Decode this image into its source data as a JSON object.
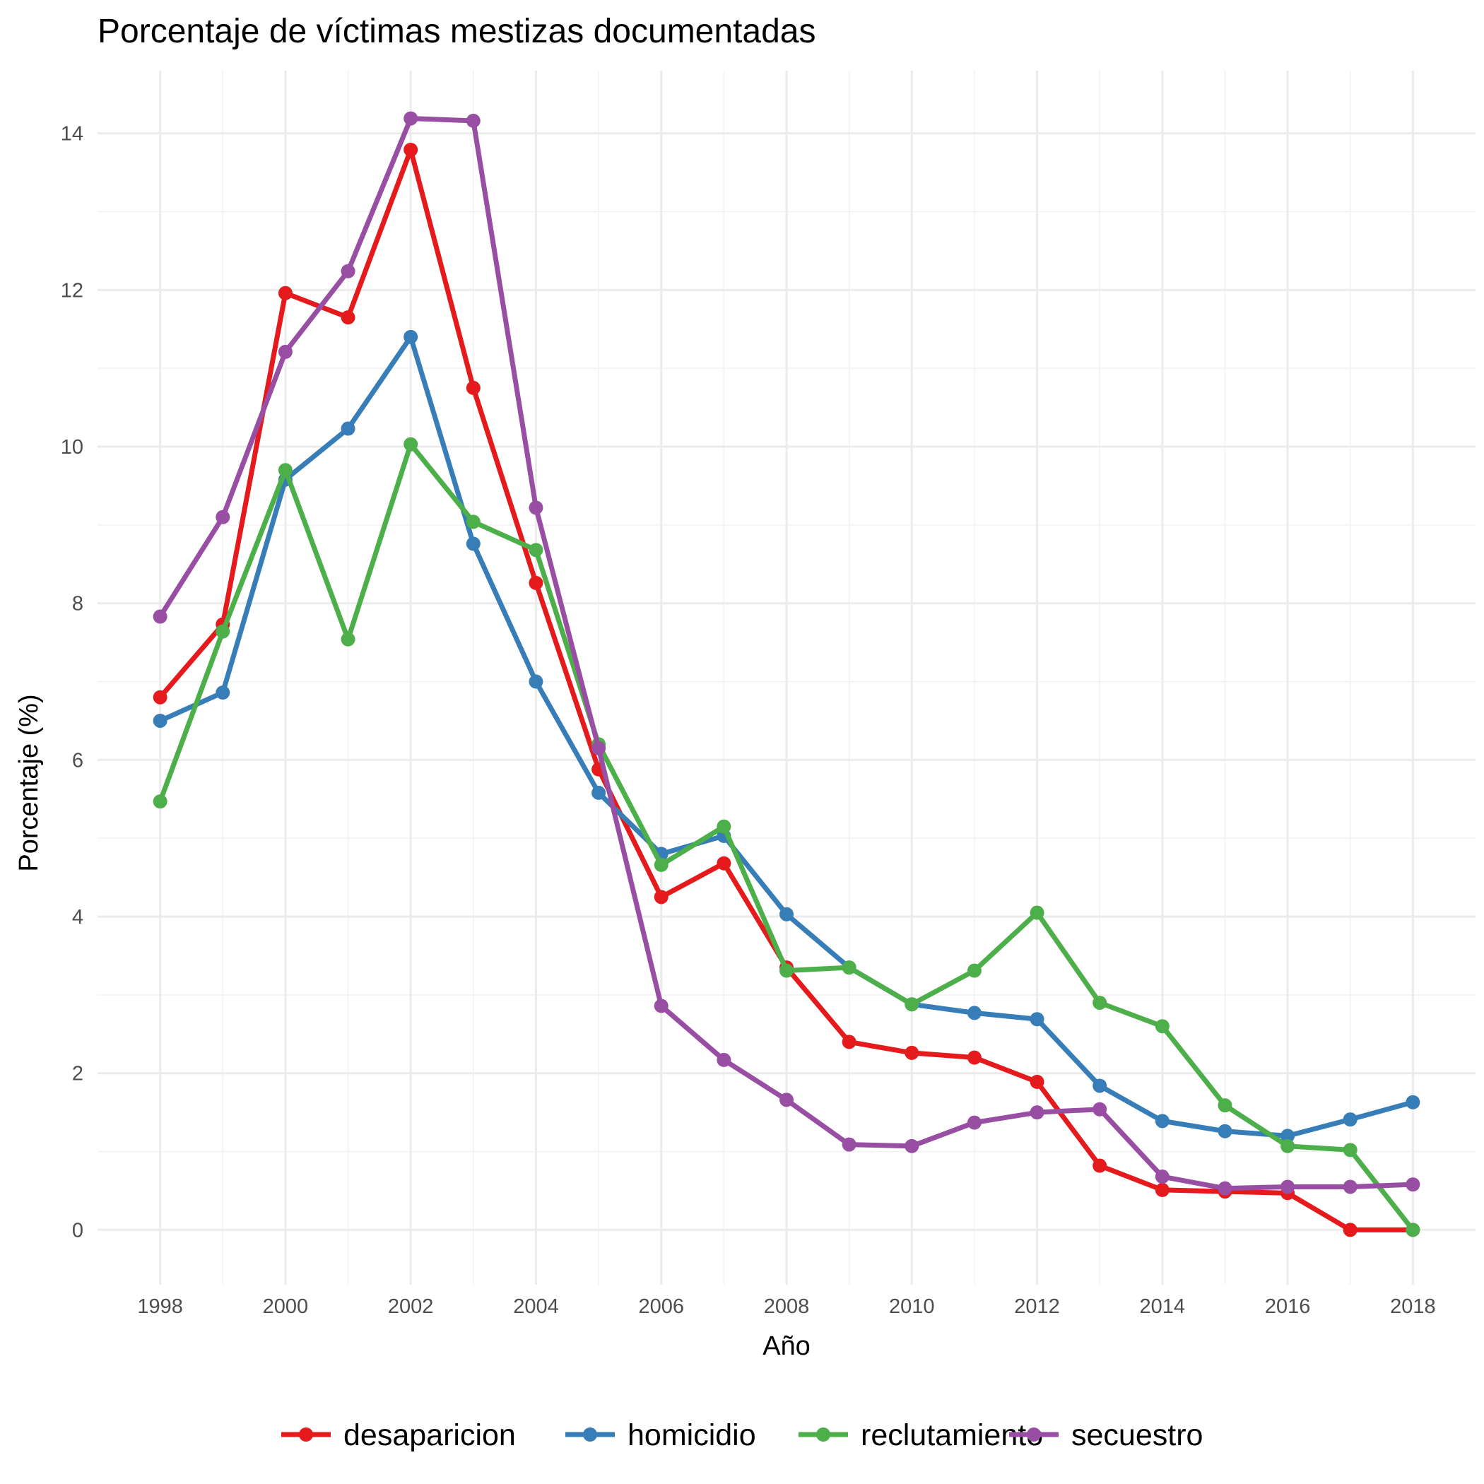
{
  "chart_data": {
    "type": "line",
    "title": "Porcentaje de víctimas mestizas documentadas",
    "xlabel": "Año",
    "ylabel": "Porcentaje (%)",
    "x": [
      1998,
      1999,
      2000,
      2001,
      2002,
      2003,
      2004,
      2005,
      2006,
      2007,
      2008,
      2009,
      2010,
      2011,
      2012,
      2013,
      2014,
      2015,
      2016,
      2017,
      2018
    ],
    "xlim": [
      1997,
      2019
    ],
    "ylim": [
      -0.7,
      14.8
    ],
    "x_ticks": [
      "1998",
      "2000",
      "2002",
      "2004",
      "2006",
      "2008",
      "2010",
      "2012",
      "2014",
      "2016",
      "2018"
    ],
    "y_ticks": [
      "0",
      "2",
      "4",
      "6",
      "8",
      "10",
      "12",
      "14"
    ],
    "grid": true,
    "legend_position": "bottom",
    "series": [
      {
        "name": "desaparicion",
        "color": "#E41A1C",
        "values": [
          6.8,
          7.73,
          11.96,
          11.65,
          13.79,
          10.75,
          8.26,
          5.88,
          4.25,
          4.68,
          3.35,
          2.4,
          2.26,
          2.2,
          1.89,
          0.82,
          0.51,
          0.49,
          0.47,
          0.0,
          0.0
        ]
      },
      {
        "name": "homicidio",
        "color": "#377EB8",
        "values": [
          6.5,
          6.86,
          9.58,
          10.23,
          11.4,
          8.76,
          7.0,
          5.58,
          4.8,
          5.03,
          4.03,
          3.35,
          2.88,
          2.77,
          2.69,
          1.84,
          1.39,
          1.26,
          1.2,
          1.41,
          1.63
        ]
      },
      {
        "name": "reclutamiento",
        "color": "#4DAF4A",
        "values": [
          5.47,
          7.64,
          9.7,
          7.54,
          10.03,
          9.04,
          8.68,
          6.2,
          4.66,
          5.15,
          3.31,
          3.35,
          2.88,
          3.31,
          4.05,
          2.9,
          2.6,
          1.59,
          1.07,
          1.02,
          0.0
        ]
      },
      {
        "name": "secuestro",
        "color": "#984EA3",
        "values": [
          7.83,
          9.1,
          11.21,
          12.24,
          14.19,
          14.16,
          9.22,
          6.15,
          2.86,
          2.17,
          1.66,
          1.09,
          1.07,
          1.37,
          1.5,
          1.54,
          0.68,
          0.53,
          0.55,
          0.55,
          0.58
        ]
      }
    ]
  }
}
